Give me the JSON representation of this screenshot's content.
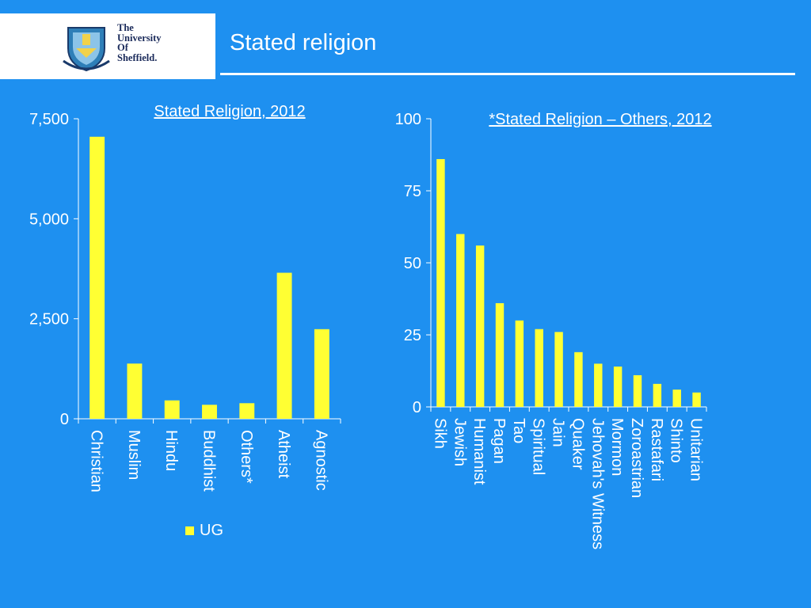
{
  "header": {
    "logo": {
      "lines": [
        "The",
        "University",
        "Of",
        "Sheffield."
      ]
    },
    "title": "Stated religion"
  },
  "colors": {
    "background": "#1E90F0",
    "bar": "#FFFF33",
    "text": "#FFFFFF"
  },
  "chart_data": [
    {
      "type": "bar",
      "title": "Stated Religion, 2012",
      "categories": [
        "Christian",
        "Muslim",
        "Hindu",
        "Buddhist",
        "Others*",
        "Atheist",
        "Agnostic"
      ],
      "series": [
        {
          "name": "UG",
          "values": [
            7050,
            1380,
            460,
            350,
            390,
            3650,
            2240
          ]
        }
      ],
      "ylim": [
        0,
        7500
      ],
      "yticks": [
        "0",
        "2,500",
        "5,000",
        "7,500"
      ],
      "grid": false,
      "legend": "bottom"
    },
    {
      "type": "bar",
      "title": "*Stated Religion – Others, 2012",
      "categories": [
        "Sikh",
        "Jewish",
        "Humanist",
        "Pagan",
        "Tao",
        "Spiritual",
        "Jain",
        "Quaker",
        "Jehovah's Witness",
        "Mormon",
        "Zoroastrian",
        "Rastafari",
        "Shinto",
        "Unitarian"
      ],
      "values": [
        86,
        60,
        56,
        36,
        30,
        27,
        26,
        19,
        15,
        14,
        11,
        8,
        6,
        5
      ],
      "ylim": [
        0,
        100
      ],
      "yticks": [
        "0",
        "25",
        "50",
        "75",
        "100"
      ],
      "grid": false
    }
  ]
}
